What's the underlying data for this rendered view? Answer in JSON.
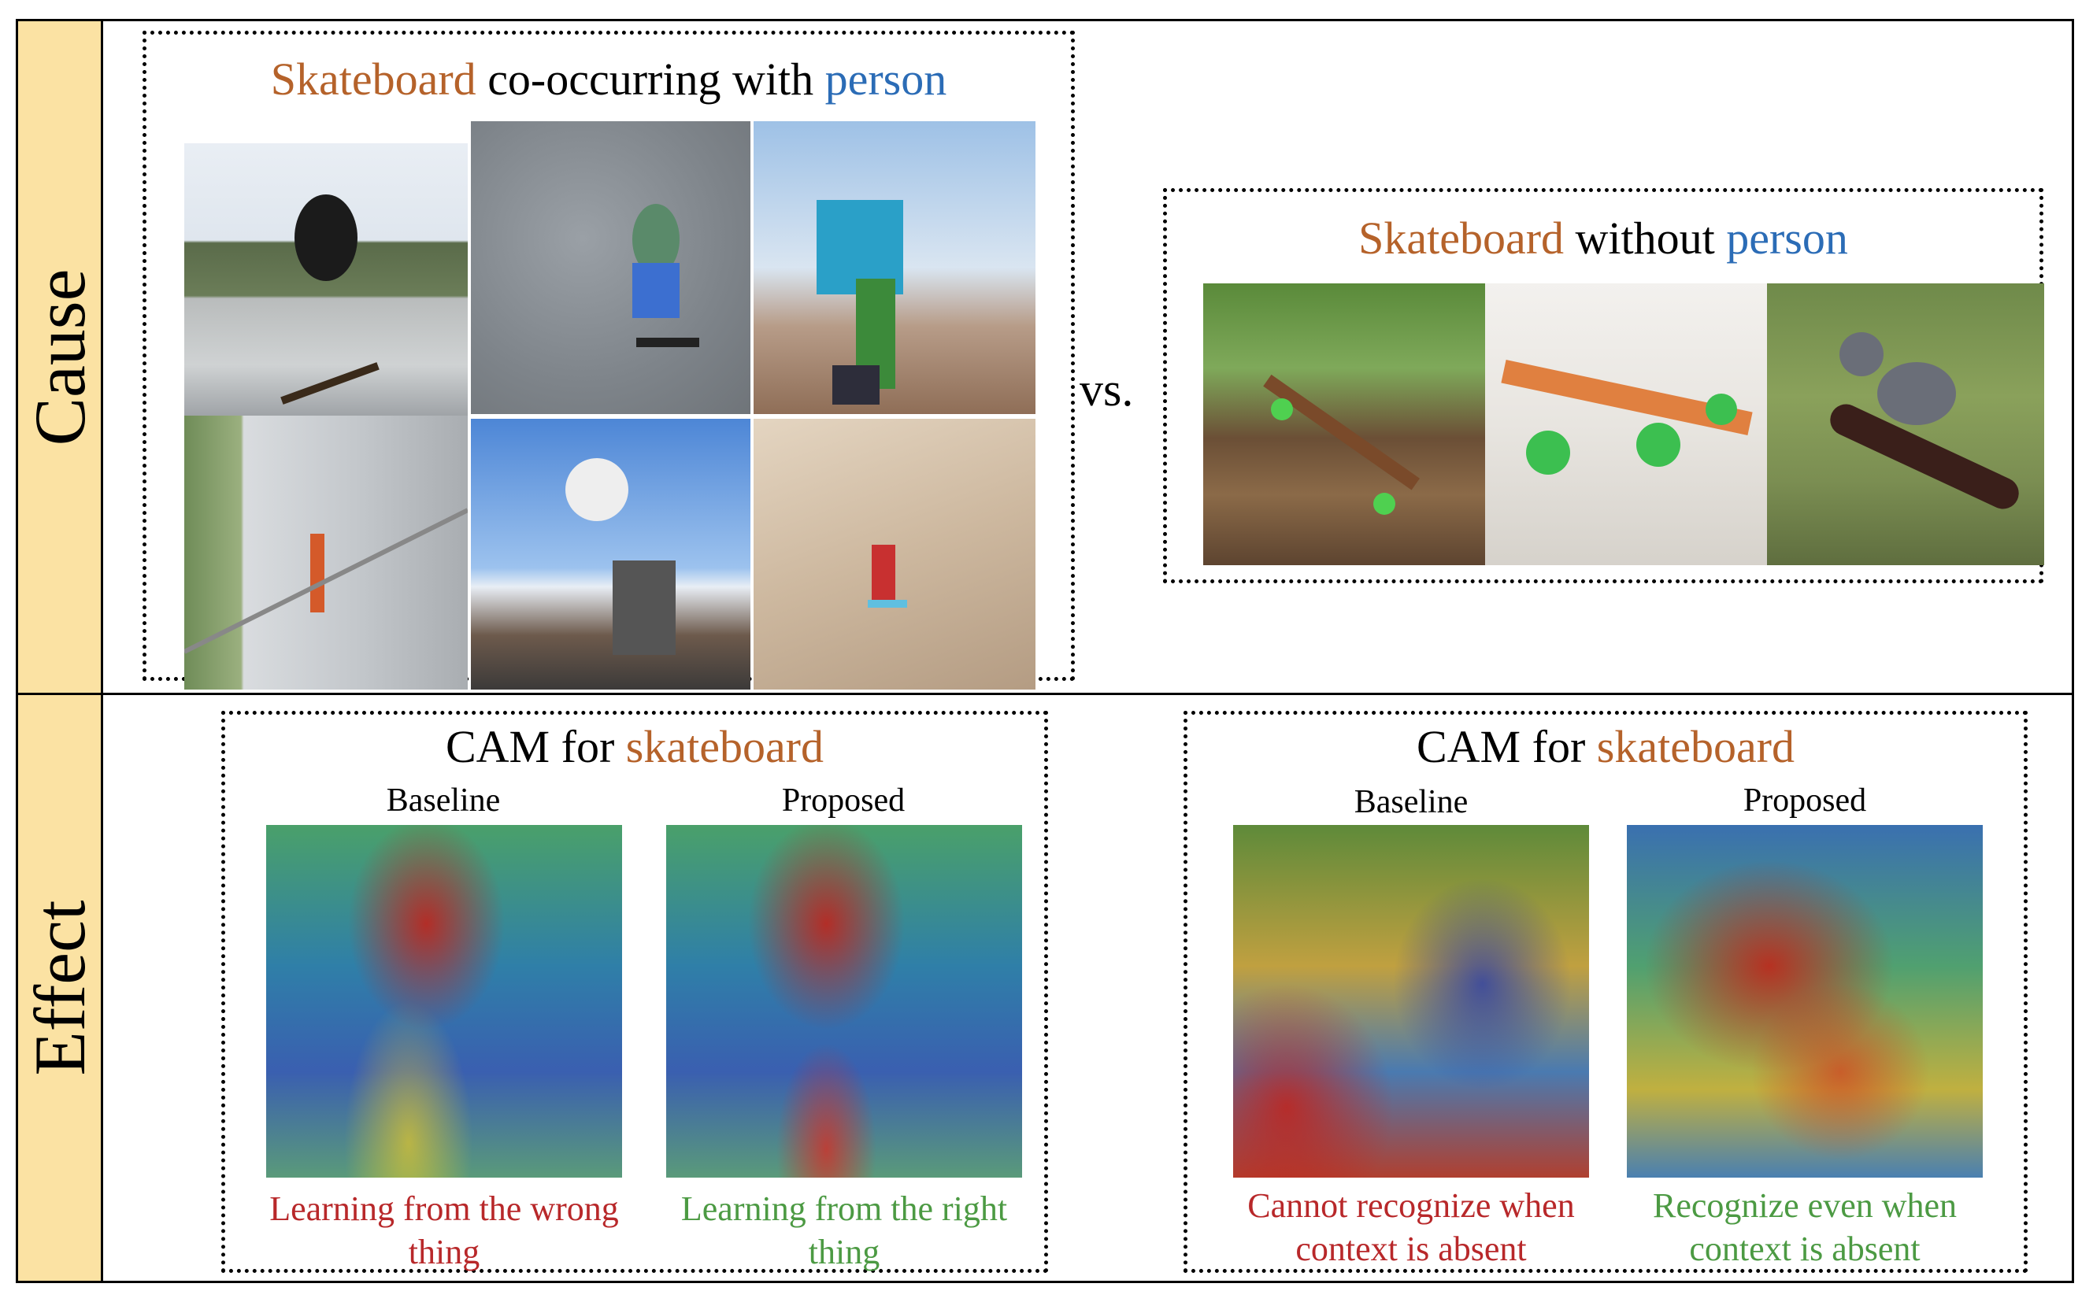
{
  "side_labels": {
    "cause": "Cause",
    "effect": "Effect"
  },
  "cause": {
    "cooccur_title": {
      "part1": "Skateboard",
      "part2": " co-occurring with ",
      "part3": "person"
    },
    "vs": "vs.",
    "without_title": {
      "part1": "Skateboard",
      "part2": " without ",
      "part3": "person"
    }
  },
  "effect": {
    "left": {
      "title": {
        "part1": "CAM for ",
        "part2": "skateboard"
      },
      "baseline_label": "Baseline",
      "proposed_label": "Proposed",
      "baseline_caption": "Learning from the wrong thing",
      "proposed_caption": "Learning from the right thing"
    },
    "right": {
      "title": {
        "part1": "CAM for ",
        "part2": "skateboard"
      },
      "baseline_label": "Baseline",
      "proposed_label": "Proposed",
      "baseline_caption": "Cannot recognize when context is absent",
      "proposed_caption": "Recognize even when context is absent"
    }
  },
  "colors": {
    "accent_orange": "#b5622a",
    "accent_blue": "#2b6cb6",
    "caption_red": "#b8282a",
    "caption_green": "#4c9a43",
    "side_panel": "#fbe2a3"
  }
}
